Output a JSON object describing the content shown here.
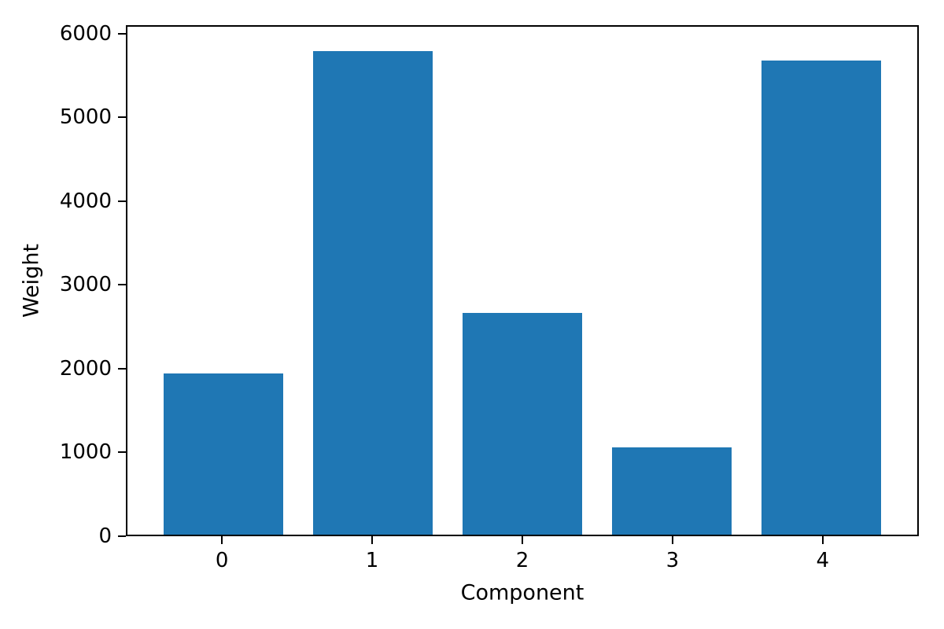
{
  "chart_data": {
    "type": "bar",
    "title": "",
    "xlabel": "Component",
    "ylabel": "Weight",
    "categories": [
      "0",
      "1",
      "2",
      "3",
      "4"
    ],
    "values": [
      1940,
      5810,
      2660,
      1050,
      5690
    ],
    "bar_color": "#1f77b4",
    "bar_width": 0.8,
    "xlim": [
      -0.64,
      4.64
    ],
    "ylim": [
      0,
      6100
    ],
    "yticks": [
      0,
      1000,
      2000,
      3000,
      4000,
      5000,
      6000
    ],
    "grid": false,
    "legend": null
  },
  "colors": {
    "background": "#ffffff",
    "axis": "#000000",
    "text": "#000000"
  }
}
